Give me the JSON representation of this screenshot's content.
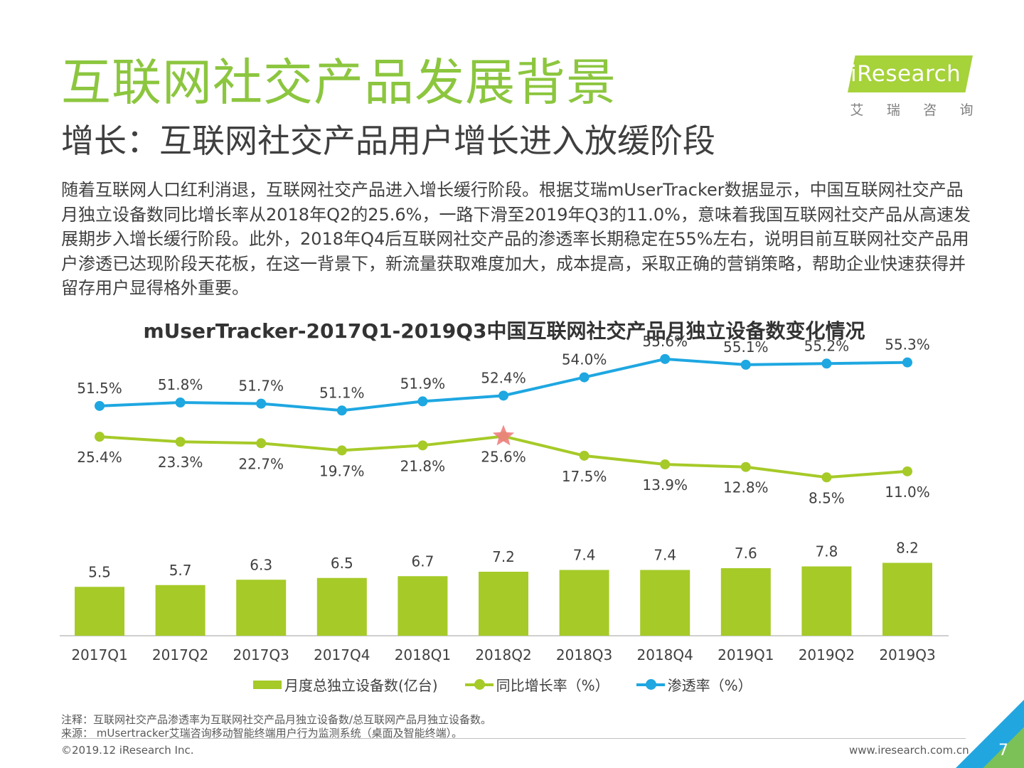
{
  "header": {
    "title": "互联网社交产品发展背景",
    "subtitle": "增长：互联网社交产品用户增长进入放缓阶段"
  },
  "logo": {
    "wordmark": "iResearch",
    "chinese": [
      "艾",
      "瑞",
      "咨",
      "询"
    ]
  },
  "body": {
    "paragraph": "随着互联网人口红利消退，互联网社交产品进入增长缓行阶段。根据艾瑞mUserTracker数据显示，中国互联网社交产品月独立设备数同比增长率从2018年Q2的25.6%，一路下滑至2019年Q3的11.0%，意味着我国互联网社交产品从高速发展期步入增长缓行阶段。此外，2018年Q4后互联网社交产品的渗透率长期稳定在55%左右，说明目前互联网社交产品用户渗透已达现阶段天花板，在这一背景下，新流量获取难度加大，成本提高，采取正确的营销策略，帮助企业快速获得并留存用户显得格外重要。"
  },
  "chart_data": {
    "type": "bar+line",
    "title": "mUserTracker-2017Q1-2019Q3中国互联网社交产品月独立设备数变化情况",
    "categories": [
      "2017Q1",
      "2017Q2",
      "2017Q3",
      "2017Q4",
      "2018Q1",
      "2018Q2",
      "2018Q3",
      "2018Q4",
      "2019Q1",
      "2019Q2",
      "2019Q3"
    ],
    "series": [
      {
        "name": "月度总独立设备数(亿台)",
        "type": "bar",
        "color": "#a6ca28",
        "values": [
          5.5,
          5.7,
          6.3,
          6.5,
          6.7,
          7.2,
          7.4,
          7.4,
          7.6,
          7.8,
          8.2
        ],
        "labels": [
          "5.5",
          "5.7",
          "6.3",
          "6.5",
          "6.7",
          "7.2",
          "7.4",
          "7.4",
          "7.6",
          "7.8",
          "8.2"
        ]
      },
      {
        "name": "同比增长率（%）",
        "type": "line",
        "color": "#a6ca28",
        "values": [
          25.4,
          23.3,
          22.7,
          19.7,
          21.8,
          25.6,
          17.5,
          13.9,
          12.8,
          8.5,
          11.0
        ],
        "labels": [
          "25.4%",
          "23.3%",
          "22.7%",
          "19.7%",
          "21.8%",
          "25.6%",
          "17.5%",
          "13.9%",
          "12.8%",
          "8.5%",
          "11.0%"
        ],
        "highlight_index": 5,
        "highlight_color": "#f08080"
      },
      {
        "name": "渗透率（%）",
        "type": "line",
        "color": "#1ea7e1",
        "values": [
          51.5,
          51.8,
          51.7,
          51.1,
          51.9,
          52.4,
          54.0,
          55.6,
          55.1,
          55.2,
          55.3
        ],
        "labels": [
          "51.5%",
          "51.8%",
          "51.7%",
          "51.1%",
          "51.9%",
          "52.4%",
          "54.0%",
          "55.6%",
          "55.1%",
          "55.2%",
          "55.3%"
        ]
      }
    ],
    "legend_position": "bottom-center",
    "grid": false
  },
  "footer": {
    "note": "注释：互联网社交产品渗透率为互联网社交产品月独立设备数/总互联网产品月独立设备数。",
    "source": "来源： mUsertracker艾瑞咨询移动智能终端用户行为监测系统（桌面及智能终端）。",
    "copyright": "©2019.12 iResearch Inc.",
    "website": "www.iresearch.com.cn",
    "page_number": "7"
  }
}
